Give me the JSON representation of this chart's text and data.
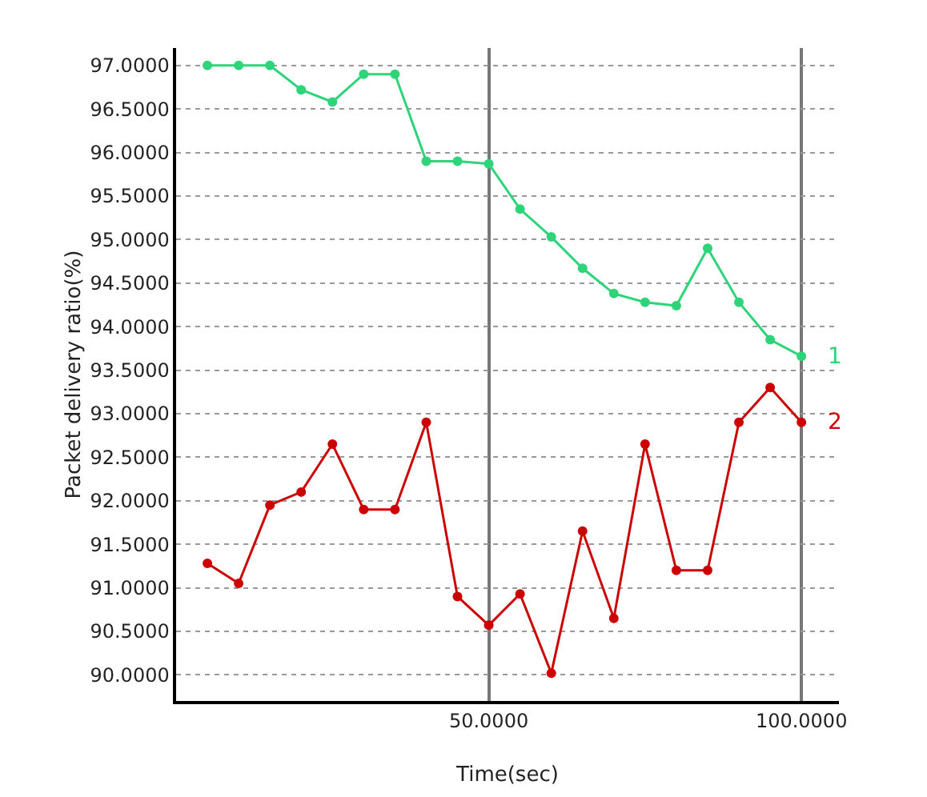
{
  "chart_data": {
    "type": "line",
    "xlabel": "Time(sec)",
    "ylabel": "Packet delivery ratio(%)",
    "x": [
      5,
      10,
      15,
      20,
      25,
      30,
      35,
      40,
      45,
      50,
      55,
      60,
      65,
      70,
      75,
      80,
      85,
      90,
      95,
      100
    ],
    "series": [
      {
        "name": "1",
        "color": "#2ed47a",
        "values": [
          97,
          97,
          97,
          96.72,
          96.58,
          96.9,
          96.9,
          95.9,
          95.9,
          95.87,
          95.35,
          95.03,
          94.67,
          94.38,
          94.28,
          94.24,
          94.9,
          94.28,
          93.85,
          93.66
        ]
      },
      {
        "name": "2",
        "color": "#cc0000",
        "values": [
          91.28,
          91.05,
          91.95,
          92.1,
          92.65,
          91.9,
          91.9,
          92.9,
          90.9,
          90.57,
          90.93,
          90.02,
          91.65,
          90.65,
          92.65,
          91.2,
          91.2,
          92.9,
          93.3,
          92.9
        ]
      }
    ],
    "xlim": [
      0,
      106
    ],
    "ylim": [
      89.7,
      97.2
    ],
    "xticks": [
      {
        "value": 50,
        "label": "50.0000"
      },
      {
        "value": 100,
        "label": "100.0000"
      }
    ],
    "yticks": [
      {
        "value": 90,
        "label": "90.0000"
      },
      {
        "value": 90.5,
        "label": "90.5000"
      },
      {
        "value": 91,
        "label": "91.0000"
      },
      {
        "value": 91.5,
        "label": "91.5000"
      },
      {
        "value": 92,
        "label": "92.0000"
      },
      {
        "value": 92.5,
        "label": "92.5000"
      },
      {
        "value": 93,
        "label": "93.0000"
      },
      {
        "value": 93.5,
        "label": "93.5000"
      },
      {
        "value": 94,
        "label": "94.0000"
      },
      {
        "value": 94.5,
        "label": "94.5000"
      },
      {
        "value": 95,
        "label": "95.0000"
      },
      {
        "value": 95.5,
        "label": "95.5000"
      },
      {
        "value": 96,
        "label": "96.0000"
      },
      {
        "value": 96.5,
        "label": "96.5000"
      },
      {
        "value": 97,
        "label": "97.0000"
      }
    ],
    "grid": true,
    "legend": false,
    "marker": "circle",
    "line_style": "solid"
  }
}
